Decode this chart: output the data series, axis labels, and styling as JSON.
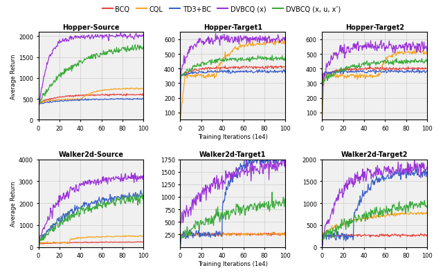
{
  "legend_labels": [
    "BCQ",
    "CQL",
    "TD3+BC",
    "DVBCQ (x)",
    "DVBCQ (x, u, x’)"
  ],
  "legend_colors": [
    "#e8423a",
    "#f5a623",
    "#3a5fc8",
    "#9b30d9",
    "#3aaa3a"
  ],
  "subplot_titles": [
    "Hopper-Source",
    "Hopper-Target1",
    "Hopper-Target2",
    "Walker2d-Source",
    "Walker2d-Target1",
    "Walker2d-Target2"
  ],
  "ylabels": [
    "Average Return",
    "",
    "",
    "Average Return",
    "",
    ""
  ],
  "xlabels": [
    "",
    "Training Iterations (1e4)",
    "",
    "",
    "Training Iterations (1e4)",
    ""
  ],
  "colors": {
    "BCQ": "#e8423a",
    "CQL": "#f5a623",
    "TD3BC": "#3a5fc8",
    "DVBCQ_x": "#9b30d9",
    "DVBCQ_xu": "#3aaa3a"
  },
  "grid_color": "#cccccc",
  "bg_color": "#f0f0f0"
}
